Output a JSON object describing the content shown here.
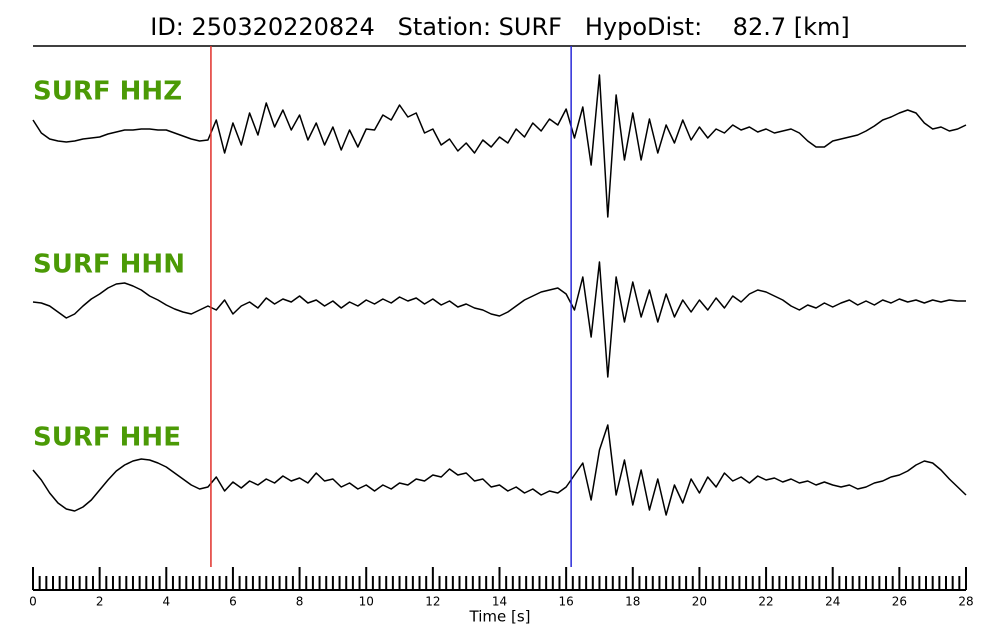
{
  "chart_data": {
    "type": "line",
    "title": "ID: 250320220824   Station: SURF   HypoDist:    82.7 [km]",
    "xlabel": "Time [s]",
    "xlim": [
      0,
      28
    ],
    "xticks": [
      0,
      2,
      4,
      6,
      8,
      10,
      12,
      14,
      16,
      18,
      20,
      22,
      24,
      26,
      28
    ],
    "xminorticks": [
      0.2,
      0.4,
      0.6,
      0.8,
      1,
      1.2,
      1.4,
      1.6,
      1.8,
      2.2,
      2.4,
      2.6,
      2.8,
      3,
      3.2,
      3.4,
      3.6,
      3.8,
      4.2,
      4.4,
      4.6,
      4.8,
      5,
      5.2,
      5.4,
      5.6,
      5.8,
      6.2,
      6.4,
      6.6,
      6.8,
      7,
      7.2,
      7.4,
      7.6,
      7.8,
      8.2,
      8.4,
      8.6,
      8.8,
      9,
      9.2,
      9.4,
      9.6,
      9.8,
      10.2,
      10.4,
      10.6,
      10.8,
      11,
      11.2,
      11.4,
      11.6,
      11.8,
      12.2,
      12.4,
      12.6,
      12.8,
      13,
      13.2,
      13.4,
      13.6,
      13.8,
      14.2,
      14.4,
      14.6,
      14.8,
      15,
      15.2,
      15.4,
      15.6,
      15.8,
      16.2,
      16.4,
      16.6,
      16.8,
      17,
      17.2,
      17.4,
      17.6,
      17.8,
      18.2,
      18.4,
      18.6,
      18.8,
      19,
      19.2,
      19.4,
      19.6,
      19.8,
      20.2,
      20.4,
      20.6,
      20.8,
      21,
      21.2,
      21.4,
      21.6,
      21.8,
      22.2,
      22.4,
      22.6,
      22.8,
      23,
      23.2,
      23.4,
      23.6,
      23.8,
      24.2,
      24.4,
      24.6,
      24.8,
      25,
      25.2,
      25.4,
      25.6,
      25.8,
      26.2,
      26.4,
      26.6,
      26.8,
      27,
      27.2,
      27.4,
      27.6,
      27.8
    ],
    "picks": [
      {
        "value": 5.34,
        "color": "#e0302a"
      },
      {
        "value": 16.15,
        "color": "#2a2ad8"
      }
    ],
    "label_color": "#4b9a06",
    "x": [
      0,
      0.25,
      0.5,
      0.75,
      1,
      1.25,
      1.5,
      1.75,
      2,
      2.25,
      2.5,
      2.75,
      3,
      3.25,
      3.5,
      3.75,
      4,
      4.25,
      4.5,
      4.75,
      5,
      5.25,
      5.5,
      5.75,
      6,
      6.25,
      6.5,
      6.75,
      7,
      7.25,
      7.5,
      7.75,
      8,
      8.25,
      8.5,
      8.75,
      9,
      9.25,
      9.5,
      9.75,
      10,
      10.25,
      10.5,
      10.75,
      11,
      11.25,
      11.5,
      11.75,
      12,
      12.25,
      12.5,
      12.75,
      13,
      13.25,
      13.5,
      13.75,
      14,
      14.25,
      14.5,
      14.75,
      15,
      15.25,
      15.5,
      15.75,
      16,
      16.25,
      16.5,
      16.75,
      17,
      17.25,
      17.5,
      17.75,
      18,
      18.25,
      18.5,
      18.75,
      19,
      19.25,
      19.5,
      19.75,
      20,
      20.25,
      20.5,
      20.75,
      21,
      21.25,
      21.5,
      21.75,
      22,
      22.25,
      22.5,
      22.75,
      23,
      23.25,
      23.5,
      23.75,
      24,
      24.25,
      24.5,
      24.75,
      25,
      25.25,
      25.5,
      25.75,
      26,
      26.25,
      26.5,
      26.75,
      27,
      27.25,
      27.5,
      27.75,
      28
    ],
    "series": [
      {
        "name": "SURF HHZ",
        "color": "#000000",
        "values": [
          1.5,
          0.2,
          -0.4,
          -0.6,
          -0.7,
          -0.6,
          -0.4,
          -0.3,
          -0.2,
          0.1,
          0.3,
          0.5,
          0.5,
          0.6,
          0.6,
          0.5,
          0.5,
          0.2,
          -0.1,
          -0.4,
          -0.6,
          -0.5,
          1.5,
          -1.8,
          1.2,
          -1.0,
          2.2,
          0.0,
          3.2,
          0.8,
          2.5,
          0.5,
          2.0,
          -0.5,
          1.2,
          -1.0,
          0.8,
          -1.5,
          0.5,
          -1.2,
          0.6,
          0.5,
          2.0,
          1.5,
          3.0,
          1.8,
          2.2,
          0.2,
          0.6,
          -1.0,
          -0.4,
          -1.6,
          -0.8,
          -1.8,
          -0.5,
          -1.2,
          -0.2,
          -0.8,
          0.6,
          -0.2,
          1.2,
          0.4,
          1.6,
          1.0,
          2.6,
          -0.3,
          2.8,
          -3.0,
          6.0,
          -8.2,
          4.0,
          -2.5,
          2.2,
          -2.5,
          1.6,
          -1.8,
          1.0,
          -0.8,
          1.5,
          -0.5,
          0.8,
          -0.3,
          0.6,
          0.2,
          1.0,
          0.5,
          0.8,
          0.3,
          0.6,
          0.2,
          0.4,
          0.6,
          0.2,
          -0.6,
          -1.2,
          -1.2,
          -0.6,
          -0.4,
          -0.2,
          0.0,
          0.4,
          0.9,
          1.5,
          1.8,
          2.2,
          2.5,
          2.2,
          1.2,
          0.6,
          0.8,
          0.4,
          0.6,
          1.0
        ]
      },
      {
        "name": "SURF HHN",
        "color": "#000000",
        "values": [
          0.0,
          -0.1,
          -0.4,
          -1.0,
          -1.6,
          -1.2,
          -0.4,
          0.3,
          0.8,
          1.4,
          1.8,
          1.9,
          1.6,
          1.2,
          0.6,
          0.2,
          -0.3,
          -0.7,
          -1.0,
          -1.2,
          -0.8,
          -0.4,
          -0.8,
          0.2,
          -1.2,
          -0.4,
          0.0,
          -0.6,
          0.4,
          -0.2,
          0.3,
          0.0,
          0.6,
          -0.1,
          0.2,
          -0.4,
          0.1,
          -0.6,
          0.0,
          -0.4,
          0.2,
          -0.2,
          0.3,
          -0.1,
          0.5,
          0.1,
          0.4,
          -0.2,
          0.3,
          -0.3,
          0.1,
          -0.5,
          -0.2,
          -0.6,
          -0.8,
          -1.2,
          -1.4,
          -1.0,
          -0.4,
          0.2,
          0.6,
          1.0,
          1.2,
          1.4,
          0.8,
          -0.8,
          2.5,
          -3.5,
          4.0,
          -7.5,
          2.5,
          -2.0,
          2.0,
          -1.5,
          1.2,
          -2.0,
          0.8,
          -1.5,
          0.2,
          -1.0,
          0.2,
          -0.8,
          0.4,
          -0.6,
          0.6,
          0.0,
          0.8,
          1.2,
          1.0,
          0.6,
          0.2,
          -0.4,
          -0.8,
          -0.3,
          -0.6,
          -0.1,
          -0.5,
          -0.1,
          0.2,
          -0.3,
          0.1,
          -0.3,
          0.2,
          -0.1,
          0.3,
          0.0,
          0.2,
          -0.1,
          0.2,
          0.0,
          0.2,
          0.1,
          0.1
        ]
      },
      {
        "name": "SURF HHE",
        "color": "#000000",
        "values": [
          1.5,
          0.5,
          -0.8,
          -1.8,
          -2.4,
          -2.6,
          -2.2,
          -1.5,
          -0.5,
          0.5,
          1.4,
          2.0,
          2.4,
          2.6,
          2.5,
          2.2,
          1.8,
          1.2,
          0.6,
          0.0,
          -0.4,
          -0.2,
          0.8,
          -0.6,
          0.3,
          -0.3,
          0.4,
          0.0,
          0.6,
          0.2,
          0.9,
          0.4,
          0.7,
          0.2,
          1.2,
          0.4,
          0.6,
          -0.2,
          0.2,
          -0.4,
          0.0,
          -0.6,
          0.0,
          -0.4,
          0.2,
          0.0,
          0.6,
          0.4,
          1.0,
          0.8,
          1.6,
          1.0,
          1.2,
          0.4,
          0.6,
          -0.2,
          0.0,
          -0.6,
          -0.2,
          -0.8,
          -0.4,
          -1.0,
          -0.6,
          -0.8,
          -0.2,
          1.0,
          2.2,
          -1.5,
          3.5,
          6.0,
          -1.0,
          2.5,
          -2.0,
          1.5,
          -2.5,
          0.6,
          -3.0,
          0.0,
          -1.8,
          0.6,
          -0.8,
          0.8,
          -0.2,
          1.2,
          0.4,
          0.8,
          0.2,
          0.9,
          0.5,
          0.7,
          0.3,
          0.6,
          0.2,
          0.4,
          0.0,
          0.3,
          0.0,
          -0.2,
          0.0,
          -0.4,
          -0.2,
          0.2,
          0.4,
          0.8,
          1.0,
          1.4,
          2.0,
          2.4,
          2.2,
          1.5,
          0.6,
          -0.2,
          -1.0
        ]
      }
    ]
  }
}
